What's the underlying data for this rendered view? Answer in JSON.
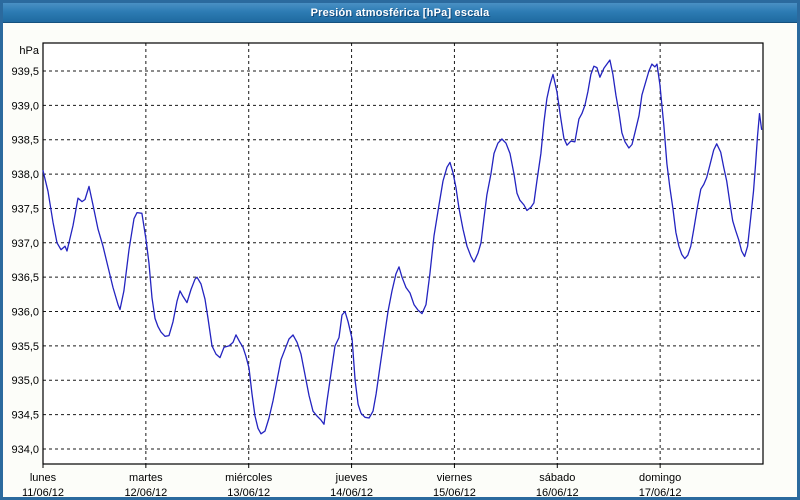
{
  "window": {
    "title": "Presión atmosférica [hPa] escala"
  },
  "colors": {
    "window_border": "#2b6a9e",
    "titlebar": "#2d7cb4",
    "title_text": "#ffffff",
    "background": "#fcfdf9",
    "plot_background": "#ffffff",
    "grid": "#1a1a1a",
    "axis": "#000000",
    "line": "#2424c0",
    "tick_text": "#000000"
  },
  "chart_data": {
    "type": "line",
    "title": "Presión atmosférica [hPa] escala",
    "ylabel": "hPa",
    "xlabel": "",
    "ylim": [
      933.68,
      939.91
    ],
    "x_days_total": 7,
    "grid": "dashed",
    "legend": "none",
    "y_ticks": [
      {
        "v": 939.5,
        "label": "939,5"
      },
      {
        "v": 939.0,
        "label": "939,0"
      },
      {
        "v": 938.5,
        "label": "938,5"
      },
      {
        "v": 938.0,
        "label": "938,0"
      },
      {
        "v": 937.5,
        "label": "937,5"
      },
      {
        "v": 937.0,
        "label": "937,0"
      },
      {
        "v": 936.5,
        "label": "936,5"
      },
      {
        "v": 936.0,
        "label": "936,0"
      },
      {
        "v": 935.5,
        "label": "935,5"
      },
      {
        "v": 935.0,
        "label": "935,0"
      },
      {
        "v": 934.5,
        "label": "934,5"
      },
      {
        "v": 934.0,
        "label": "934,0"
      }
    ],
    "x_ticks": [
      {
        "day": "lunes",
        "date": "11/06/12",
        "t": 0
      },
      {
        "day": "martes",
        "date": "12/06/12",
        "t": 1
      },
      {
        "day": "miércoles",
        "date": "13/06/12",
        "t": 2
      },
      {
        "day": "jueves",
        "date": "14/06/12",
        "t": 3
      },
      {
        "day": "viernes",
        "date": "15/06/12",
        "t": 4
      },
      {
        "day": "sábado",
        "date": "16/06/12",
        "t": 5
      },
      {
        "day": "domingo",
        "date": "17/06/12",
        "t": 6
      }
    ],
    "series": [
      {
        "name": "presion_atmosferica_hPa",
        "color": "#2424c0",
        "points": [
          [
            0.0,
            938.05
          ],
          [
            0.049,
            937.75
          ],
          [
            0.097,
            937.3
          ],
          [
            0.136,
            937.0
          ],
          [
            0.175,
            936.9
          ],
          [
            0.214,
            936.95
          ],
          [
            0.233,
            936.88
          ],
          [
            0.292,
            937.25
          ],
          [
            0.34,
            937.65
          ],
          [
            0.379,
            937.6
          ],
          [
            0.408,
            937.63
          ],
          [
            0.447,
            937.82
          ],
          [
            0.486,
            937.55
          ],
          [
            0.535,
            937.2
          ],
          [
            0.583,
            936.95
          ],
          [
            0.632,
            936.65
          ],
          [
            0.681,
            936.35
          ],
          [
            0.729,
            936.1
          ],
          [
            0.749,
            936.03
          ],
          [
            0.787,
            936.3
          ],
          [
            0.836,
            936.9
          ],
          [
            0.885,
            937.35
          ],
          [
            0.914,
            937.44
          ],
          [
            0.962,
            937.43
          ],
          [
            1.001,
            937.05
          ],
          [
            1.031,
            936.7
          ],
          [
            1.06,
            936.2
          ],
          [
            1.089,
            935.9
          ],
          [
            1.118,
            935.78
          ],
          [
            1.147,
            935.7
          ],
          [
            1.186,
            935.64
          ],
          [
            1.225,
            935.65
          ],
          [
            1.264,
            935.85
          ],
          [
            1.303,
            936.15
          ],
          [
            1.332,
            936.3
          ],
          [
            1.361,
            936.22
          ],
          [
            1.4,
            936.13
          ],
          [
            1.439,
            936.32
          ],
          [
            1.478,
            936.47
          ],
          [
            1.497,
            936.5
          ],
          [
            1.536,
            936.4
          ],
          [
            1.575,
            936.18
          ],
          [
            1.604,
            935.9
          ],
          [
            1.643,
            935.5
          ],
          [
            1.682,
            935.38
          ],
          [
            1.721,
            935.33
          ],
          [
            1.76,
            935.48
          ],
          [
            1.808,
            935.5
          ],
          [
            1.847,
            935.55
          ],
          [
            1.876,
            935.66
          ],
          [
            1.915,
            935.55
          ],
          [
            1.944,
            935.48
          ],
          [
            1.973,
            935.35
          ],
          [
            2.003,
            935.18
          ],
          [
            2.032,
            934.8
          ],
          [
            2.061,
            934.48
          ],
          [
            2.09,
            934.3
          ],
          [
            2.119,
            934.22
          ],
          [
            2.158,
            934.26
          ],
          [
            2.197,
            934.45
          ],
          [
            2.236,
            934.7
          ],
          [
            2.275,
            935.0
          ],
          [
            2.314,
            935.3
          ],
          [
            2.353,
            935.45
          ],
          [
            2.392,
            935.6
          ],
          [
            2.431,
            935.66
          ],
          [
            2.47,
            935.55
          ],
          [
            2.508,
            935.38
          ],
          [
            2.547,
            935.08
          ],
          [
            2.586,
            934.78
          ],
          [
            2.625,
            934.55
          ],
          [
            2.664,
            934.48
          ],
          [
            2.703,
            934.42
          ],
          [
            2.732,
            934.36
          ],
          [
            2.761,
            934.7
          ],
          [
            2.8,
            935.1
          ],
          [
            2.839,
            935.5
          ],
          [
            2.878,
            935.62
          ],
          [
            2.907,
            935.95
          ],
          [
            2.936,
            936.0
          ],
          [
            2.966,
            935.85
          ],
          [
            3.005,
            935.6
          ],
          [
            3.034,
            935.0
          ],
          [
            3.063,
            934.65
          ],
          [
            3.092,
            934.52
          ],
          [
            3.131,
            934.46
          ],
          [
            3.17,
            934.45
          ],
          [
            3.208,
            934.55
          ],
          [
            3.238,
            934.8
          ],
          [
            3.276,
            935.2
          ],
          [
            3.315,
            935.6
          ],
          [
            3.354,
            936.0
          ],
          [
            3.393,
            936.3
          ],
          [
            3.432,
            936.55
          ],
          [
            3.461,
            936.65
          ],
          [
            3.49,
            936.5
          ],
          [
            3.529,
            936.35
          ],
          [
            3.568,
            936.27
          ],
          [
            3.607,
            936.1
          ],
          [
            3.646,
            936.02
          ],
          [
            3.685,
            935.97
          ],
          [
            3.724,
            936.1
          ],
          [
            3.762,
            936.55
          ],
          [
            3.801,
            937.1
          ],
          [
            3.85,
            937.55
          ],
          [
            3.889,
            937.9
          ],
          [
            3.928,
            938.1
          ],
          [
            3.957,
            938.17
          ],
          [
            3.986,
            938.02
          ],
          [
            4.015,
            937.8
          ],
          [
            4.044,
            937.5
          ],
          [
            4.083,
            937.2
          ],
          [
            4.122,
            936.95
          ],
          [
            4.161,
            936.8
          ],
          [
            4.19,
            936.72
          ],
          [
            4.229,
            936.85
          ],
          [
            4.258,
            937.0
          ],
          [
            4.287,
            937.35
          ],
          [
            4.316,
            937.7
          ],
          [
            4.355,
            938.0
          ],
          [
            4.385,
            938.3
          ],
          [
            4.423,
            938.45
          ],
          [
            4.462,
            938.51
          ],
          [
            4.501,
            938.45
          ],
          [
            4.54,
            938.3
          ],
          [
            4.579,
            938.0
          ],
          [
            4.608,
            937.72
          ],
          [
            4.637,
            937.62
          ],
          [
            4.676,
            937.55
          ],
          [
            4.705,
            937.47
          ],
          [
            4.744,
            937.52
          ],
          [
            4.773,
            937.58
          ],
          [
            4.802,
            937.9
          ],
          [
            4.841,
            938.3
          ],
          [
            4.87,
            938.75
          ],
          [
            4.899,
            939.1
          ],
          [
            4.928,
            939.3
          ],
          [
            4.958,
            939.45
          ],
          [
            4.996,
            939.2
          ],
          [
            5.035,
            938.8
          ],
          [
            5.064,
            938.52
          ],
          [
            5.094,
            938.42
          ],
          [
            5.132,
            938.48
          ],
          [
            5.171,
            938.47
          ],
          [
            5.21,
            938.8
          ],
          [
            5.239,
            938.88
          ],
          [
            5.268,
            939.0
          ],
          [
            5.298,
            939.2
          ],
          [
            5.327,
            939.45
          ],
          [
            5.356,
            939.57
          ],
          [
            5.385,
            939.55
          ],
          [
            5.414,
            939.41
          ],
          [
            5.453,
            939.54
          ],
          [
            5.482,
            939.6
          ],
          [
            5.512,
            939.66
          ],
          [
            5.541,
            939.45
          ],
          [
            5.57,
            939.15
          ],
          [
            5.599,
            938.9
          ],
          [
            5.628,
            938.6
          ],
          [
            5.658,
            938.47
          ],
          [
            5.696,
            938.38
          ],
          [
            5.726,
            938.43
          ],
          [
            5.755,
            938.6
          ],
          [
            5.794,
            938.85
          ],
          [
            5.823,
            939.15
          ],
          [
            5.862,
            939.35
          ],
          [
            5.891,
            939.5
          ],
          [
            5.92,
            939.6
          ],
          [
            5.949,
            939.56
          ],
          [
            5.969,
            939.6
          ],
          [
            5.998,
            939.3
          ],
          [
            6.017,
            939.0
          ],
          [
            6.037,
            938.7
          ],
          [
            6.066,
            938.15
          ],
          [
            6.095,
            937.8
          ],
          [
            6.124,
            937.5
          ],
          [
            6.153,
            937.15
          ],
          [
            6.182,
            936.95
          ],
          [
            6.211,
            936.83
          ],
          [
            6.24,
            936.77
          ],
          [
            6.269,
            936.82
          ],
          [
            6.298,
            936.95
          ],
          [
            6.327,
            937.2
          ],
          [
            6.366,
            937.55
          ],
          [
            6.395,
            937.78
          ],
          [
            6.424,
            937.85
          ],
          [
            6.453,
            937.95
          ],
          [
            6.482,
            938.12
          ],
          [
            6.521,
            938.35
          ],
          [
            6.55,
            938.44
          ],
          [
            6.589,
            938.32
          ],
          [
            6.618,
            938.1
          ],
          [
            6.647,
            937.9
          ],
          [
            6.676,
            937.6
          ],
          [
            6.705,
            937.32
          ],
          [
            6.734,
            937.18
          ],
          [
            6.763,
            937.05
          ],
          [
            6.792,
            936.88
          ],
          [
            6.821,
            936.8
          ],
          [
            6.85,
            936.95
          ],
          [
            6.879,
            937.35
          ],
          [
            6.908,
            937.75
          ],
          [
            6.928,
            938.15
          ],
          [
            6.947,
            938.55
          ],
          [
            6.966,
            938.88
          ],
          [
            6.986,
            938.65
          ]
        ]
      }
    ]
  }
}
